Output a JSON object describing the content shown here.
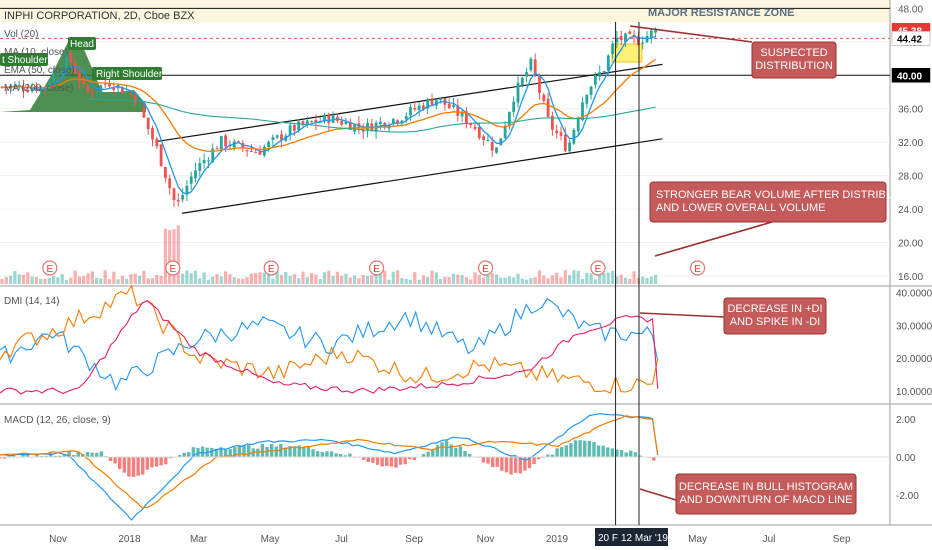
{
  "header": {
    "title": "INPHI CORPORATION, 2D, Cboe BZX",
    "vol_label": "Vol (20)",
    "ma_label": "MA (10, close)",
    "ema_label": "EMA (50, close)",
    "ma200_label": "MA (200, close)"
  },
  "price_axis": {
    "ticks": [
      "48.00",
      "44.00",
      "40.00",
      "36.00",
      "32.00",
      "28.00",
      "24.00",
      "20.00",
      "16.00"
    ],
    "badges": [
      {
        "text": "45.38",
        "color": "#e53935",
        "text_color": "#ffffff"
      },
      {
        "text": "44.42",
        "color": "#ffffff",
        "text_color": "#000000"
      },
      {
        "text": "40.00",
        "color": "#000000",
        "text_color": "#ffffff"
      }
    ]
  },
  "dmi_axis": {
    "ticks": [
      "40.0000",
      "30.0000",
      "20.0000",
      "10.0000"
    ]
  },
  "macd_axis": {
    "ticks": [
      "2.00",
      "0.00",
      "-2.00"
    ]
  },
  "time_axis": {
    "labels": [
      "Nov",
      "2018",
      "Mar",
      "May",
      "Jul",
      "Sep",
      "Nov",
      "2019",
      "May",
      "Jul",
      "Sep"
    ],
    "highlight_1": "20 Fe",
    "highlight_2": "12 Mar '19"
  },
  "panels": {
    "dmi_label": "DMI (14, 14)",
    "macd_label": "MACD (12, 26, close, 9)"
  },
  "annotations": {
    "resistance_zone": "MAJOR RESISTANCE ZONE",
    "head": "Head",
    "left_shoulder": "t Shoulder",
    "right_shoulder": "Right Shoulder",
    "suspected_distribution": "SUSPECTED\nDISTRIBUTION",
    "bear_volume": "STRONGER BEAR VOLUME AFTER DISTRIBUTION\nAND LOWER OVERALL VOLUME",
    "dmi_note": "DECREASE IN +DI\nAND SPIKE IN -DI",
    "macd_note": "DECREASE IN BULL HISTOGRAM\nAND DOWNTURN OF MACD LINE",
    "earnings_marker": "E"
  },
  "colors": {
    "up": "#26a69a",
    "down": "#ef5350",
    "ma10": "#2196f3",
    "ema50": "#f57c00",
    "ma200": "#26a69a",
    "plus_di": "#2196f3",
    "minus_di": "#f57c00",
    "adx": "#e91e63",
    "macd": "#2196f3",
    "signal": "#f57c00",
    "callout_fill": "#c45a5a",
    "callout_border": "#a03030",
    "resistance_zone": "#fdf6df",
    "pattern_fill": "#2e7d32"
  },
  "chart_data": [
    {
      "type": "candlestick",
      "title": "INPHI CORPORATION, 2D, Cboe BZX",
      "ylim": [
        14.8,
        49
      ],
      "x": [
        "Nov 2017",
        "2018",
        "Mar",
        "May",
        "Jul",
        "Sep",
        "Nov",
        "2019",
        "Mar",
        "May",
        "Jul",
        "Sep"
      ],
      "series": [
        {
          "name": "price",
          "points_date_close": [
            [
              "2017-10-20",
              38.6
            ],
            [
              "2017-11-10",
              42.2
            ],
            [
              "2017-11-25",
              37.8
            ],
            [
              "2017-12-15",
              39.2
            ],
            [
              "2018-01-05",
              37.5
            ],
            [
              "2018-01-25",
              31.0
            ],
            [
              "2018-02-10",
              24.2
            ],
            [
              "2018-02-25",
              28.5
            ],
            [
              "2018-03-20",
              32.1
            ],
            [
              "2018-04-20",
              30.8
            ],
            [
              "2018-05-20",
              33.6
            ],
            [
              "2018-06-20",
              34.9
            ],
            [
              "2018-07-20",
              33.7
            ],
            [
              "2018-08-20",
              35.0
            ],
            [
              "2018-09-20",
              37.3
            ],
            [
              "2018-10-20",
              34.2
            ],
            [
              "2018-11-10",
              31.0
            ],
            [
              "2018-11-25",
              37.5
            ],
            [
              "2018-12-10",
              41.4
            ],
            [
              "2018-12-25",
              34.3
            ],
            [
              "2019-01-10",
              31.2
            ],
            [
              "2019-01-25",
              38.0
            ],
            [
              "2019-02-10",
              40.8
            ],
            [
              "2019-02-20",
              44.4
            ],
            [
              "2019-03-12",
              44.2
            ],
            [
              "2019-03-27",
              45.38
            ]
          ]
        },
        {
          "name": "MA (10, close)",
          "role": "ma10"
        },
        {
          "name": "EMA (50, close)",
          "role": "ema50"
        },
        {
          "name": "MA (200, close)",
          "role": "ma200"
        }
      ],
      "levels": [
        48.0,
        44.42,
        40.0
      ],
      "resistance_zone": [
        44.0,
        48.0
      ],
      "channel": {
        "lower": [
          [
            "2018-02-15",
            23.5
          ],
          [
            "2019-04-01",
            32.4
          ]
        ],
        "upper": [
          [
            "2018-01-25",
            32.1
          ],
          [
            "2019-04-01",
            41.3
          ]
        ]
      },
      "earnings_dates": [
        "2017-10-25",
        "2018-02-07",
        "2018-05-02",
        "2018-07-31",
        "2018-11-01",
        "2019-02-05",
        "2019-05-01"
      ]
    },
    {
      "type": "line",
      "title": "DMI (14, 14)",
      "ylim": [
        6,
        42
      ],
      "series": [
        {
          "name": "+DI",
          "points": [
            [
              0,
              20
            ],
            [
              0.08,
              28
            ],
            [
              0.18,
              12
            ],
            [
              0.3,
              26
            ],
            [
              0.4,
              30
            ],
            [
              0.5,
              24
            ],
            [
              0.62,
              33
            ],
            [
              0.72,
              22
            ],
            [
              0.82,
              38
            ],
            [
              0.9,
              28
            ],
            [
              1.0,
              27
            ]
          ]
        },
        {
          "name": "-DI",
          "points": [
            [
              0,
              22
            ],
            [
              0.1,
              30
            ],
            [
              0.2,
              40
            ],
            [
              0.3,
              20
            ],
            [
              0.42,
              15
            ],
            [
              0.52,
              22
            ],
            [
              0.64,
              14
            ],
            [
              0.74,
              18
            ],
            [
              0.84,
              14
            ],
            [
              0.92,
              12
            ],
            [
              1.0,
              12
            ]
          ]
        },
        {
          "name": "ADX",
          "points": [
            [
              0,
              10
            ],
            [
              0.12,
              10
            ],
            [
              0.22,
              38
            ],
            [
              0.3,
              22
            ],
            [
              0.42,
              12
            ],
            [
              0.55,
              10
            ],
            [
              0.68,
              12
            ],
            [
              0.8,
              16
            ],
            [
              0.88,
              28
            ],
            [
              0.95,
              32
            ],
            [
              1.0,
              32
            ]
          ]
        }
      ]
    },
    {
      "type": "line",
      "title": "MACD (12, 26, close, 9)",
      "ylim": [
        -3.6,
        2.8
      ],
      "series": [
        {
          "name": "MACD",
          "points": [
            [
              0,
              0.1
            ],
            [
              0.1,
              0.2
            ],
            [
              0.2,
              -3.3
            ],
            [
              0.3,
              0.2
            ],
            [
              0.4,
              0.8
            ],
            [
              0.5,
              0.9
            ],
            [
              0.6,
              0.2
            ],
            [
              0.7,
              1.1
            ],
            [
              0.8,
              -0.2
            ],
            [
              0.9,
              2.3
            ],
            [
              1.0,
              2.0
            ]
          ]
        },
        {
          "name": "Signal",
          "points": [
            [
              0,
              0.1
            ],
            [
              0.12,
              0.3
            ],
            [
              0.22,
              -2.8
            ],
            [
              0.33,
              0.0
            ],
            [
              0.45,
              0.5
            ],
            [
              0.55,
              0.9
            ],
            [
              0.65,
              0.4
            ],
            [
              0.75,
              0.8
            ],
            [
              0.85,
              0.6
            ],
            [
              0.95,
              2.2
            ],
            [
              1.0,
              2.0
            ]
          ]
        },
        {
          "name": "Histogram",
          "points": [
            [
              0,
              0.0
            ],
            [
              0.15,
              0.3
            ],
            [
              0.2,
              -1.1
            ],
            [
              0.3,
              0.5
            ],
            [
              0.45,
              0.6
            ],
            [
              0.52,
              0.2
            ],
            [
              0.6,
              -0.6
            ],
            [
              0.68,
              0.8
            ],
            [
              0.78,
              -1.0
            ],
            [
              0.88,
              1.0
            ],
            [
              1.0,
              -0.2
            ]
          ]
        }
      ]
    }
  ]
}
